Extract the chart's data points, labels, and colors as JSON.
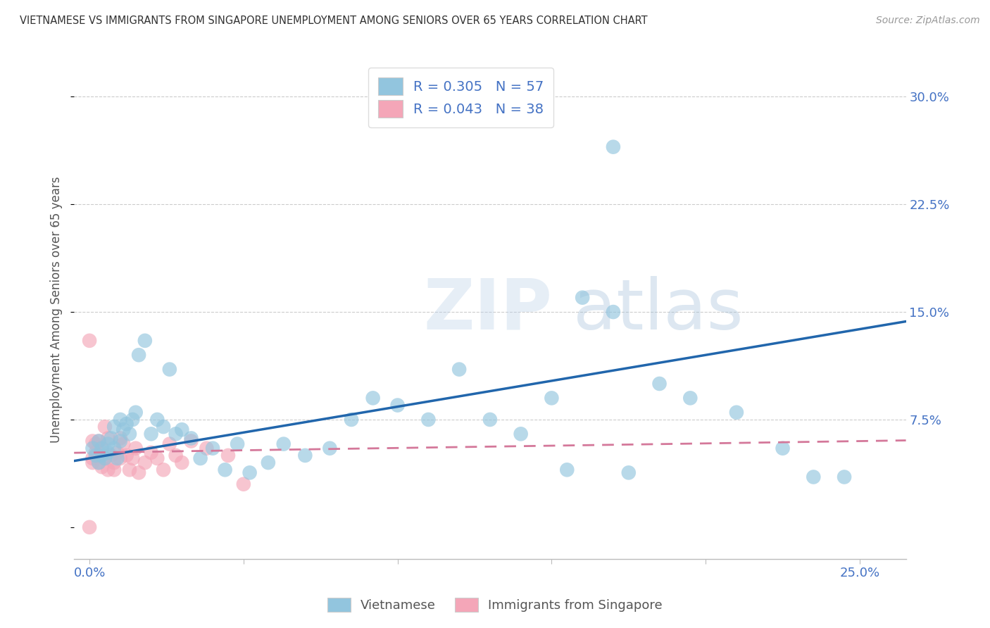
{
  "title": "VIETNAMESE VS IMMIGRANTS FROM SINGAPORE UNEMPLOYMENT AMONG SENIORS OVER 65 YEARS CORRELATION CHART",
  "source": "Source: ZipAtlas.com",
  "ylabel": "Unemployment Among Seniors over 65 years",
  "y_tick_vals": [
    0.0,
    0.075,
    0.15,
    0.225,
    0.3
  ],
  "y_tick_labels": [
    "",
    "7.5%",
    "15.0%",
    "22.5%",
    "30.0%"
  ],
  "x_tick_vals": [
    0.0,
    0.05,
    0.1,
    0.15,
    0.2,
    0.25
  ],
  "x_tick_labels": [
    "0.0%",
    "",
    "",
    "",
    "",
    "25.0%"
  ],
  "x_min": -0.005,
  "x_max": 0.265,
  "y_min": -0.022,
  "y_max": 0.325,
  "watermark_zip": "ZIP",
  "watermark_atlas": "atlas",
  "legend_viet": "Vietnamese",
  "legend_sing": "Immigrants from Singapore",
  "R_viet": 0.305,
  "N_viet": 57,
  "R_sing": 0.043,
  "N_sing": 38,
  "color_viet": "#92c5de",
  "color_sing": "#f4a6b8",
  "color_viet_line": "#2166ac",
  "color_sing_line": "#d4789a",
  "viet_line_y0": 0.048,
  "viet_line_y1": 0.138,
  "sing_line_y0": 0.052,
  "sing_line_y1": 0.06,
  "viet_x": [
    0.001,
    0.002,
    0.003,
    0.003,
    0.004,
    0.004,
    0.005,
    0.006,
    0.006,
    0.007,
    0.008,
    0.008,
    0.009,
    0.01,
    0.01,
    0.011,
    0.012,
    0.013,
    0.014,
    0.015,
    0.016,
    0.018,
    0.02,
    0.022,
    0.024,
    0.026,
    0.028,
    0.03,
    0.033,
    0.036,
    0.04,
    0.044,
    0.048,
    0.052,
    0.058,
    0.063,
    0.07,
    0.078,
    0.085,
    0.092,
    0.1,
    0.11,
    0.12,
    0.13,
    0.14,
    0.15,
    0.155,
    0.16,
    0.17,
    0.175,
    0.185,
    0.195,
    0.21,
    0.225,
    0.235,
    0.245,
    0.17
  ],
  "viet_y": [
    0.055,
    0.05,
    0.06,
    0.045,
    0.055,
    0.05,
    0.048,
    0.052,
    0.058,
    0.062,
    0.07,
    0.055,
    0.048,
    0.06,
    0.075,
    0.068,
    0.072,
    0.065,
    0.075,
    0.08,
    0.12,
    0.13,
    0.065,
    0.075,
    0.07,
    0.11,
    0.065,
    0.068,
    0.062,
    0.048,
    0.055,
    0.04,
    0.058,
    0.038,
    0.045,
    0.058,
    0.05,
    0.055,
    0.075,
    0.09,
    0.085,
    0.075,
    0.11,
    0.075,
    0.065,
    0.09,
    0.04,
    0.16,
    0.265,
    0.038,
    0.1,
    0.09,
    0.08,
    0.055,
    0.035,
    0.035,
    0.15
  ],
  "sing_x": [
    0.0,
    0.0,
    0.001,
    0.001,
    0.001,
    0.002,
    0.002,
    0.003,
    0.003,
    0.004,
    0.004,
    0.005,
    0.005,
    0.006,
    0.006,
    0.007,
    0.008,
    0.008,
    0.009,
    0.01,
    0.01,
    0.011,
    0.012,
    0.013,
    0.014,
    0.015,
    0.016,
    0.018,
    0.02,
    0.022,
    0.024,
    0.026,
    0.028,
    0.03,
    0.033,
    0.038,
    0.045,
    0.05
  ],
  "sing_y": [
    0.13,
    0.0,
    0.06,
    0.045,
    0.048,
    0.052,
    0.058,
    0.06,
    0.045,
    0.055,
    0.042,
    0.07,
    0.048,
    0.04,
    0.062,
    0.05,
    0.045,
    0.04,
    0.052,
    0.048,
    0.062,
    0.058,
    0.05,
    0.04,
    0.048,
    0.055,
    0.038,
    0.045,
    0.052,
    0.048,
    0.04,
    0.058,
    0.05,
    0.045,
    0.06,
    0.055,
    0.05,
    0.03
  ]
}
